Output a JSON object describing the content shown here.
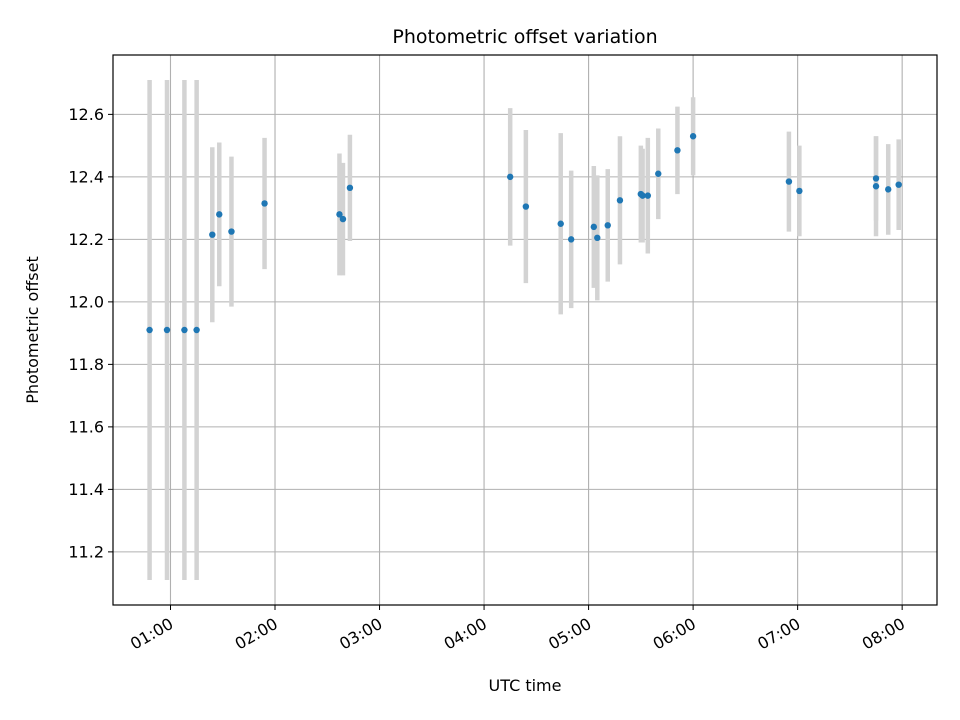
{
  "chart_data": {
    "type": "scatter",
    "title": "Photometric offset variation",
    "xlabel": "UTC time",
    "ylabel": "Photometric offset",
    "x_ticks": [
      "01:00",
      "02:00",
      "03:00",
      "04:00",
      "05:00",
      "06:00",
      "07:00",
      "08:00"
    ],
    "y_ticks": [
      "11.2",
      "11.4",
      "11.6",
      "11.8",
      "12.0",
      "12.2",
      "12.4",
      "12.6"
    ],
    "xlim": [
      "00:27",
      "08:20"
    ],
    "ylim": [
      11.03,
      12.79
    ],
    "grid": true,
    "marker_color": "#1f77b4",
    "errorbar_color": "#d3d3d3",
    "series": [
      {
        "points": [
          {
            "x": "00:48",
            "y": 11.91,
            "err": 0.8
          },
          {
            "x": "00:58",
            "y": 11.91,
            "err": 0.8
          },
          {
            "x": "01:08",
            "y": 11.91,
            "err": 0.8
          },
          {
            "x": "01:15",
            "y": 11.91,
            "err": 0.8
          },
          {
            "x": "01:24",
            "y": 12.215,
            "err": 0.28
          },
          {
            "x": "01:28",
            "y": 12.28,
            "err": 0.23
          },
          {
            "x": "01:35",
            "y": 12.225,
            "err": 0.24
          },
          {
            "x": "01:54",
            "y": 12.315,
            "err": 0.21
          },
          {
            "x": "02:37",
            "y": 12.28,
            "err": 0.195
          },
          {
            "x": "02:39",
            "y": 12.265,
            "err": 0.18
          },
          {
            "x": "02:43",
            "y": 12.365,
            "err": 0.17
          },
          {
            "x": "04:15",
            "y": 12.4,
            "err": 0.22
          },
          {
            "x": "04:24",
            "y": 12.305,
            "err": 0.245
          },
          {
            "x": "04:44",
            "y": 12.25,
            "err": 0.29
          },
          {
            "x": "04:50",
            "y": 12.2,
            "err": 0.22
          },
          {
            "x": "05:03",
            "y": 12.24,
            "err": 0.195
          },
          {
            "x": "05:05",
            "y": 12.205,
            "err": 0.2
          },
          {
            "x": "05:11",
            "y": 12.245,
            "err": 0.18
          },
          {
            "x": "05:18",
            "y": 12.325,
            "err": 0.205
          },
          {
            "x": "05:30",
            "y": 12.345,
            "err": 0.155
          },
          {
            "x": "05:31",
            "y": 12.34,
            "err": 0.15
          },
          {
            "x": "05:34",
            "y": 12.34,
            "err": 0.185
          },
          {
            "x": "05:40",
            "y": 12.41,
            "err": 0.145
          },
          {
            "x": "05:51",
            "y": 12.485,
            "err": 0.14
          },
          {
            "x": "06:00",
            "y": 12.53,
            "err": 0.125
          },
          {
            "x": "06:55",
            "y": 12.385,
            "err": 0.16
          },
          {
            "x": "07:01",
            "y": 12.355,
            "err": 0.145
          },
          {
            "x": "07:45",
            "y": 12.395,
            "err": 0.135
          },
          {
            "x": "07:45",
            "y": 12.37,
            "err": 0.16
          },
          {
            "x": "07:52",
            "y": 12.36,
            "err": 0.145
          },
          {
            "x": "07:58",
            "y": 12.375,
            "err": 0.145
          }
        ]
      }
    ]
  }
}
